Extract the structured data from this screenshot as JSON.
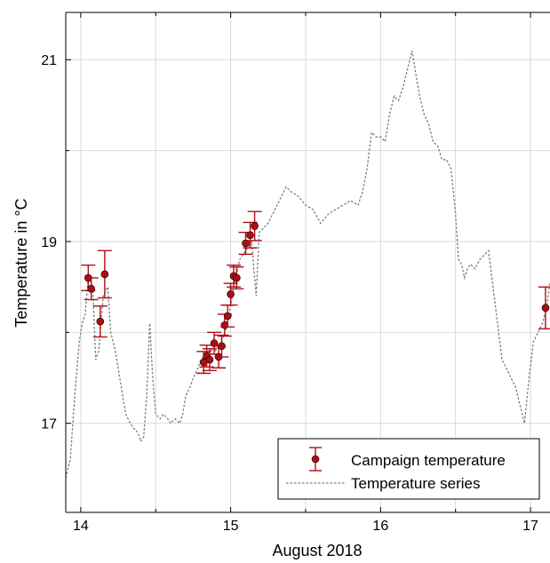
{
  "chart_data": {
    "type": "line",
    "title": "",
    "xlabel": "August 2018",
    "ylabel": "Temperature in °C",
    "xlim": [
      13.9,
      17.13
    ],
    "ylim": [
      16.02,
      21.52
    ],
    "xticks": [
      14,
      15,
      16,
      17
    ],
    "yticks": [
      17,
      19,
      21
    ],
    "grid": true,
    "legend_position": "bottom-right",
    "colors": {
      "campaign": "#b00d12",
      "series": "#7a7a7a",
      "grid": "#d9d9d9"
    },
    "series": [
      {
        "name": "Campaign temperature",
        "kind": "errorbar",
        "x": [
          14.05,
          14.07,
          14.13,
          14.16,
          14.82,
          14.84,
          14.86,
          14.89,
          14.92,
          14.94,
          14.96,
          14.98,
          15.0,
          15.02,
          15.04,
          15.1,
          15.13,
          15.16,
          17.1
        ],
        "y": [
          18.6,
          18.48,
          18.12,
          18.64,
          17.67,
          17.74,
          17.7,
          17.88,
          17.73,
          17.85,
          18.08,
          18.18,
          18.42,
          18.62,
          18.6,
          18.98,
          19.07,
          19.17,
          18.27
        ],
        "err": [
          0.14,
          0.12,
          0.17,
          0.26,
          0.12,
          0.12,
          0.12,
          0.12,
          0.12,
          0.12,
          0.12,
          0.12,
          0.12,
          0.12,
          0.12,
          0.12,
          0.14,
          0.16,
          0.23
        ]
      },
      {
        "name": "Temperature series",
        "kind": "dashed-line",
        "x": [
          13.9,
          13.93,
          13.96,
          13.99,
          14.01,
          14.03,
          14.05,
          14.08,
          14.1,
          14.12,
          14.15,
          14.18,
          14.2,
          14.23,
          14.25,
          14.28,
          14.3,
          14.33,
          14.35,
          14.38,
          14.4,
          14.42,
          14.44,
          14.46,
          14.48,
          14.5,
          14.53,
          14.55,
          14.58,
          14.6,
          14.63,
          14.66,
          14.68,
          14.7,
          14.73,
          14.75,
          14.78,
          14.8,
          14.83,
          14.86,
          14.9,
          14.94,
          14.98,
          15.02,
          15.06,
          15.1,
          15.14,
          15.17,
          15.19,
          15.22,
          15.25,
          15.28,
          15.31,
          15.34,
          15.37,
          15.4,
          15.45,
          15.5,
          15.55,
          15.6,
          15.65,
          15.7,
          15.75,
          15.8,
          15.85,
          15.88,
          15.91,
          15.94,
          15.97,
          16.0,
          16.03,
          16.06,
          16.09,
          16.12,
          16.15,
          16.18,
          16.21,
          16.23,
          16.26,
          16.29,
          16.32,
          16.35,
          16.38,
          16.41,
          16.44,
          16.47,
          16.5,
          16.52,
          16.54,
          16.56,
          16.58,
          16.6,
          16.63,
          16.66,
          16.69,
          16.72,
          16.75,
          16.78,
          16.81,
          16.84,
          16.87,
          16.9,
          16.93,
          16.96,
          16.99,
          17.02,
          17.05,
          17.08,
          17.11,
          17.13
        ],
        "y": [
          16.4,
          16.6,
          17.3,
          17.9,
          18.1,
          18.2,
          18.6,
          18.5,
          17.7,
          17.8,
          18.4,
          18.5,
          18.0,
          17.8,
          17.6,
          17.3,
          17.1,
          17.0,
          16.95,
          16.9,
          16.8,
          16.85,
          17.3,
          18.1,
          17.5,
          17.1,
          17.05,
          17.1,
          17.05,
          17.0,
          17.05,
          17.0,
          17.1,
          17.3,
          17.4,
          17.5,
          17.6,
          17.7,
          17.75,
          17.8,
          17.8,
          17.9,
          18.1,
          18.5,
          18.8,
          18.9,
          19.0,
          18.4,
          19.1,
          19.15,
          19.2,
          19.3,
          19.4,
          19.5,
          19.6,
          19.55,
          19.5,
          19.4,
          19.35,
          19.2,
          19.3,
          19.35,
          19.4,
          19.45,
          19.4,
          19.55,
          19.8,
          20.2,
          20.15,
          20.15,
          20.1,
          20.4,
          20.6,
          20.55,
          20.7,
          20.9,
          21.1,
          20.9,
          20.6,
          20.4,
          20.3,
          20.1,
          20.05,
          19.9,
          19.9,
          19.8,
          19.3,
          18.8,
          18.75,
          18.6,
          18.7,
          18.75,
          18.7,
          18.8,
          18.85,
          18.9,
          18.5,
          18.1,
          17.7,
          17.6,
          17.5,
          17.4,
          17.2,
          17.0,
          17.5,
          17.9,
          18.0,
          18.1,
          18.3,
          18.55
        ]
      }
    ]
  }
}
